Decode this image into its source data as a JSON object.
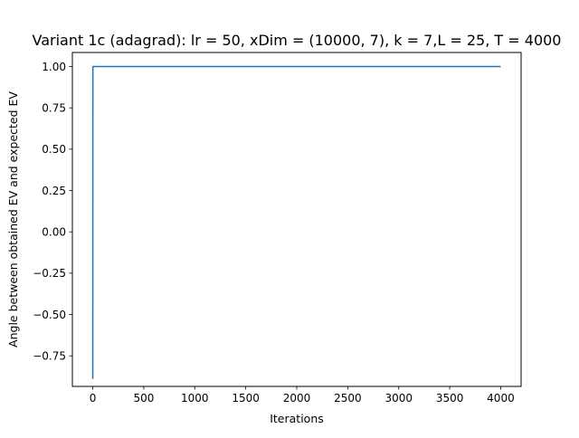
{
  "chart_data": {
    "type": "line",
    "title": "Variant 1c (adagrad): lr = 50, xDim = (10000, 7), k = 7,L = 25, T = 4000",
    "xlabel": "Iterations",
    "ylabel": "Angle between obtained EV and expected EV",
    "xlim": [
      -200,
      4200
    ],
    "ylim": [
      -0.935,
      1.085
    ],
    "xticks": [
      0,
      500,
      1000,
      1500,
      2000,
      2500,
      3000,
      3500,
      4000
    ],
    "xtick_labels": [
      "0",
      "500",
      "1000",
      "1500",
      "2000",
      "2500",
      "3000",
      "3500",
      "4000"
    ],
    "yticks": [
      -0.75,
      -0.5,
      -0.25,
      0.0,
      0.25,
      0.5,
      0.75,
      1.0
    ],
    "ytick_labels": [
      "−0.75",
      "−0.50",
      "−0.25",
      "0.00",
      "0.25",
      "0.50",
      "0.75",
      "1.00"
    ],
    "grid": false,
    "series": [
      {
        "color": "#1f77b4",
        "x": [
          0,
          1,
          4000
        ],
        "y": [
          -0.89,
          1.0,
          1.0
        ]
      }
    ]
  }
}
